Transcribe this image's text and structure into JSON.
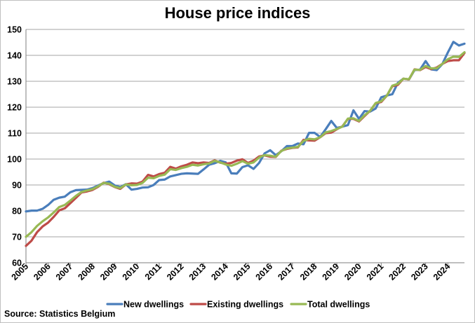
{
  "chart_data": {
    "type": "line",
    "title": "House price indices",
    "source": "Source: Statistics Belgium",
    "xlabel": "",
    "ylabel": "",
    "ylim": [
      60,
      150
    ],
    "yticks": [
      60,
      70,
      80,
      90,
      100,
      110,
      120,
      130,
      140,
      150
    ],
    "xlim": [
      2005,
      2024.75
    ],
    "xticks": [
      "2005",
      "2006",
      "2007",
      "2008",
      "2009",
      "2010",
      "2011",
      "2012",
      "2013",
      "2014",
      "2015",
      "2016",
      "2017",
      "2018",
      "2019",
      "2020",
      "2021",
      "2022",
      "2023",
      "2024"
    ],
    "grid": true,
    "legend_position": "bottom",
    "series": [
      {
        "name": "New dwellings",
        "color": "#4a7ebb",
        "x": [
          2005,
          2005.25,
          2005.5,
          2005.75,
          2006,
          2006.25,
          2006.5,
          2006.75,
          2007,
          2007.25,
          2007.5,
          2007.75,
          2008,
          2008.25,
          2008.5,
          2008.75,
          2009,
          2009.25,
          2009.5,
          2009.75,
          2010,
          2010.25,
          2010.5,
          2010.75,
          2011,
          2011.25,
          2011.5,
          2011.75,
          2012,
          2012.25,
          2012.5,
          2012.75,
          2013,
          2013.25,
          2013.5,
          2013.75,
          2014,
          2014.25,
          2014.5,
          2014.75,
          2015,
          2015.25,
          2015.5,
          2015.75,
          2016,
          2016.25,
          2016.5,
          2016.75,
          2017,
          2017.25,
          2017.5,
          2017.75,
          2018,
          2018.25,
          2018.5,
          2018.75,
          2019,
          2019.25,
          2019.5,
          2019.75,
          2020,
          2020.25,
          2020.5,
          2020.75,
          2021,
          2021.25,
          2021.5,
          2021.75,
          2022,
          2022.25,
          2022.5,
          2022.75,
          2023,
          2023.25,
          2023.5,
          2023.75,
          2024,
          2024.25,
          2024.5,
          2024.75
        ],
        "values": [
          79.8,
          80.1,
          80.1,
          80.8,
          82.3,
          84.3,
          85.1,
          85.5,
          87.2,
          88.0,
          88.1,
          88.2,
          88.8,
          89.8,
          90.7,
          91.3,
          89.8,
          89.2,
          90.3,
          88.2,
          88.5,
          89.0,
          89.1,
          90.0,
          91.9,
          92.1,
          93.3,
          93.8,
          94.3,
          94.5,
          94.4,
          94.3,
          96.0,
          97.8,
          98.4,
          99.3,
          98.7,
          94.5,
          94.4,
          96.9,
          97.6,
          96.2,
          98.5,
          102.2,
          103.4,
          101.5,
          103.0,
          105.0,
          105.0,
          106.0,
          105.7,
          110.1,
          110.1,
          108.5,
          111.5,
          114.7,
          112.0,
          112.5,
          113.1,
          118.8,
          115.5,
          118.5,
          118.3,
          119.5,
          123.8,
          124.5,
          125.0,
          129.4,
          131.0,
          130.7,
          134.3,
          134.5,
          137.8,
          134.6,
          134.3,
          136.6,
          141.1,
          145.2,
          143.8,
          144.5
        ]
      },
      {
        "name": "Existing dwellings",
        "color": "#be4b48",
        "x": [
          2005,
          2005.25,
          2005.5,
          2005.75,
          2006,
          2006.25,
          2006.5,
          2006.75,
          2007,
          2007.25,
          2007.5,
          2007.75,
          2008,
          2008.25,
          2008.5,
          2008.75,
          2009,
          2009.25,
          2009.5,
          2009.75,
          2010,
          2010.25,
          2010.5,
          2010.75,
          2011,
          2011.25,
          2011.5,
          2011.75,
          2012,
          2012.25,
          2012.5,
          2012.75,
          2013,
          2013.25,
          2013.5,
          2013.75,
          2014,
          2014.25,
          2014.5,
          2014.75,
          2015,
          2015.25,
          2015.5,
          2015.75,
          2016,
          2016.25,
          2016.5,
          2016.75,
          2017,
          2017.25,
          2017.5,
          2017.75,
          2018,
          2018.25,
          2018.5,
          2018.75,
          2019,
          2019.25,
          2019.5,
          2019.75,
          2020,
          2020.25,
          2020.5,
          2020.75,
          2021,
          2021.25,
          2021.5,
          2021.75,
          2022,
          2022.25,
          2022.5,
          2022.75,
          2023,
          2023.25,
          2023.5,
          2023.75,
          2024,
          2024.25,
          2024.5,
          2024.75
        ],
        "values": [
          66.5,
          68.5,
          71.8,
          74.0,
          75.5,
          77.7,
          80.2,
          81.0,
          83.0,
          85.0,
          87.1,
          87.5,
          88.1,
          89.3,
          90.9,
          90.3,
          89.2,
          88.5,
          90.2,
          90.6,
          90.5,
          91.3,
          93.9,
          93.3,
          94.2,
          94.7,
          97.0,
          96.3,
          97.2,
          97.8,
          98.7,
          98.4,
          98.7,
          98.5,
          99.5,
          98.6,
          98.2,
          98.5,
          99.4,
          99.9,
          98.5,
          99.4,
          101.0,
          101.4,
          100.9,
          100.8,
          103.2,
          103.9,
          104.3,
          104.5,
          107.4,
          107.2,
          107.1,
          108.4,
          110.0,
          110.2,
          111.5,
          112.6,
          115.5,
          115.5,
          114.5,
          116.6,
          118.6,
          121.5,
          122.0,
          124.4,
          128.1,
          128.6,
          131.0,
          130.7,
          134.6,
          134.3,
          135.5,
          134.7,
          135.3,
          136.7,
          137.8,
          138.1,
          138.1,
          140.9
        ]
      },
      {
        "name": "Total dwellings",
        "color": "#98b954",
        "x": [
          2005,
          2005.25,
          2005.5,
          2005.75,
          2006,
          2006.25,
          2006.5,
          2006.75,
          2007,
          2007.25,
          2007.5,
          2007.75,
          2008,
          2008.25,
          2008.5,
          2008.75,
          2009,
          2009.25,
          2009.5,
          2009.75,
          2010,
          2010.25,
          2010.5,
          2010.75,
          2011,
          2011.25,
          2011.5,
          2011.75,
          2012,
          2012.25,
          2012.5,
          2012.75,
          2013,
          2013.25,
          2013.5,
          2013.75,
          2014,
          2014.25,
          2014.5,
          2014.75,
          2015,
          2015.25,
          2015.5,
          2015.75,
          2016,
          2016.25,
          2016.5,
          2016.75,
          2017,
          2017.25,
          2017.5,
          2017.75,
          2018,
          2018.25,
          2018.5,
          2018.75,
          2019,
          2019.25,
          2019.5,
          2019.75,
          2020,
          2020.25,
          2020.5,
          2020.75,
          2021,
          2021.25,
          2021.5,
          2021.75,
          2022,
          2022.25,
          2022.5,
          2022.75,
          2023,
          2023.25,
          2023.5,
          2023.75,
          2024,
          2024.25,
          2024.5,
          2024.75
        ],
        "values": [
          70.0,
          71.8,
          74.2,
          76.0,
          77.5,
          79.4,
          81.5,
          82.3,
          84.0,
          85.8,
          87.3,
          87.9,
          88.4,
          89.5,
          90.8,
          90.5,
          89.3,
          88.8,
          90.2,
          89.9,
          90.0,
          90.8,
          92.8,
          92.6,
          93.5,
          94.0,
          96.1,
          95.8,
          96.5,
          97.0,
          97.8,
          97.5,
          98.0,
          98.3,
          99.3,
          98.7,
          97.9,
          97.4,
          98.2,
          99.2,
          98.2,
          98.7,
          100.6,
          101.5,
          101.3,
          100.9,
          103.1,
          104.1,
          104.4,
          104.7,
          107.0,
          107.8,
          107.6,
          108.4,
          110.3,
          110.8,
          111.6,
          112.5,
          115.6,
          115.7,
          114.7,
          116.9,
          118.6,
          121.6,
          122.3,
          124.4,
          128.3,
          129.0,
          131.0,
          130.8,
          134.5,
          134.4,
          135.9,
          135.0,
          135.0,
          136.7,
          138.5,
          139.5,
          139.4,
          141.2
        ]
      }
    ]
  }
}
